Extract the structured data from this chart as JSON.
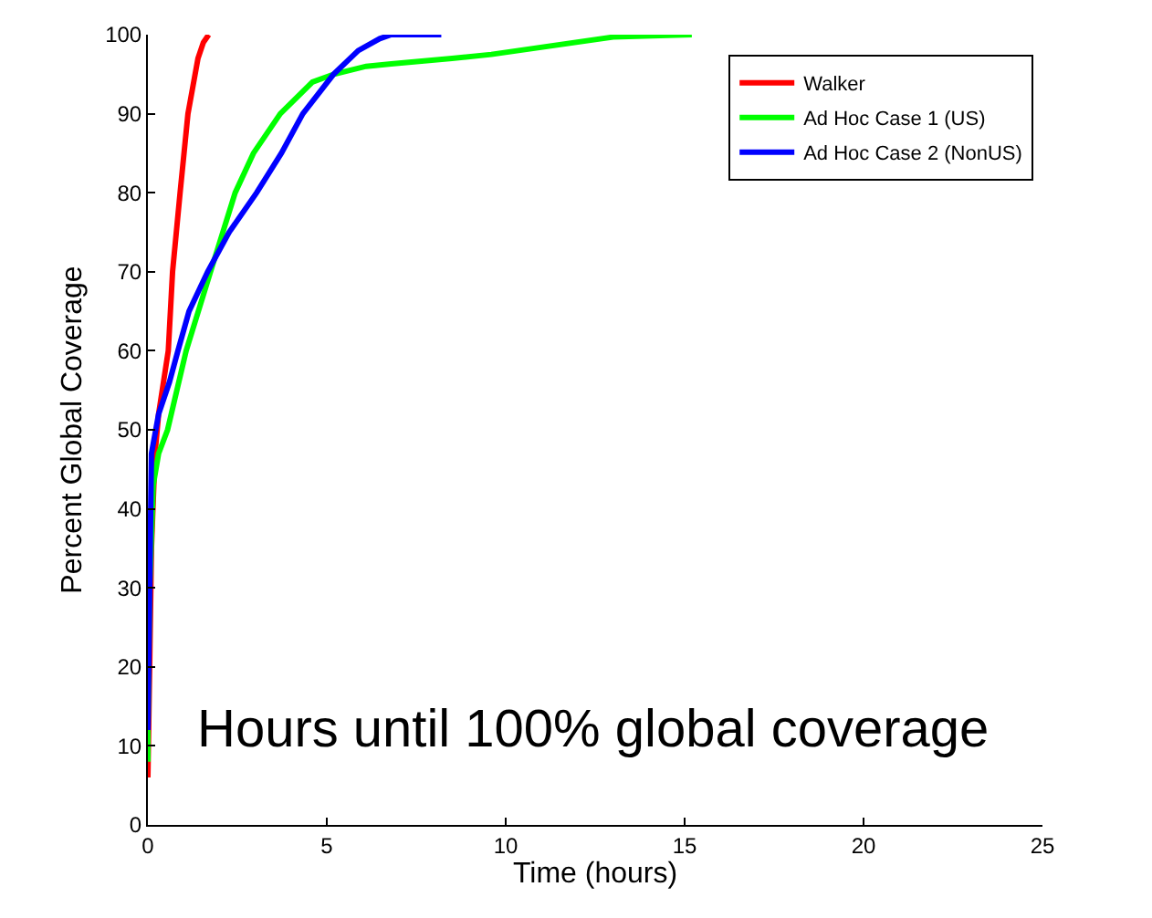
{
  "chart_data": {
    "type": "line",
    "xlabel": "Time (hours)",
    "ylabel": "Percent Global Coverage",
    "xlim": [
      0,
      25
    ],
    "ylim": [
      0,
      100
    ],
    "xticks": [
      0,
      5,
      10,
      15,
      20,
      25
    ],
    "yticks": [
      0,
      10,
      20,
      30,
      40,
      50,
      60,
      70,
      80,
      90,
      100
    ],
    "legend": "top right",
    "marker": "none",
    "line_style": "solid",
    "annotations": [
      "Hours until 100% global coverage"
    ],
    "series": [
      {
        "name": "Walker",
        "color": "#ff0000",
        "x": [
          0,
          0.05,
          0.1,
          0.2,
          0.3,
          0.57,
          0.69,
          0.9,
          1.12,
          1.4,
          1.55,
          1.7
        ],
        "values": [
          6,
          20,
          35,
          47,
          52,
          60,
          70,
          80,
          90,
          97,
          99,
          100
        ]
      },
      {
        "name": "Ad Hoc Case 1 (US)",
        "color": "#00ff00",
        "x": [
          0,
          0,
          0.05,
          0.15,
          0.3,
          0.55,
          1.07,
          1.75,
          2.44,
          2.95,
          3.7,
          4.6,
          5.2,
          6.1,
          6.8,
          8.5,
          9.6,
          13,
          15.2
        ],
        "values": [
          8,
          12,
          30,
          43,
          47,
          50,
          60,
          70,
          80,
          85,
          90,
          94,
          95,
          96,
          96.3,
          97,
          97.5,
          99.7,
          100
        ]
      },
      {
        "name": "Ad Hoc Case 2 (NonUS)",
        "color": "#0000ff",
        "x": [
          0,
          0.05,
          0.1,
          0.3,
          0.6,
          0.84,
          1.15,
          1.67,
          2.27,
          3.04,
          3.73,
          4.33,
          5.19,
          5.88,
          6.48,
          6.8,
          8.2
        ],
        "values": [
          12,
          30,
          47,
          52,
          56,
          60,
          65,
          70,
          75,
          80,
          85,
          90,
          95,
          98,
          99.5,
          100,
          100
        ]
      }
    ]
  }
}
